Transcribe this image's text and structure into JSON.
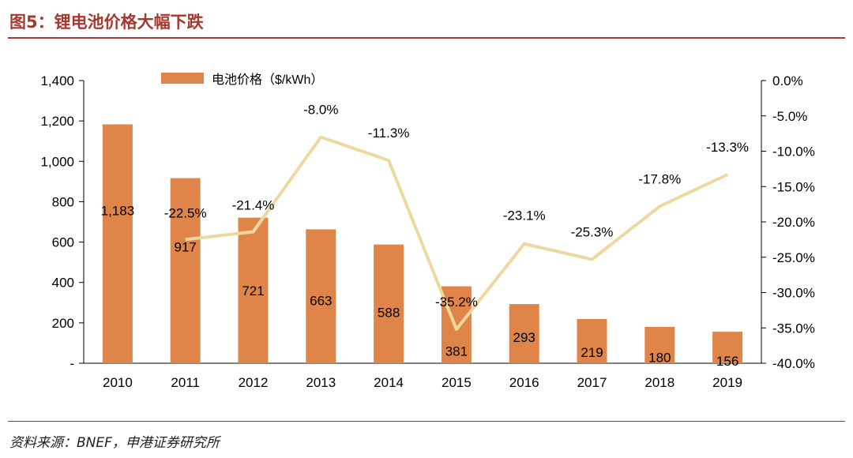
{
  "figure": {
    "title": "图5：锂电池价格大幅下跌",
    "source": "资料来源：BNEF，申港证券研究所"
  },
  "colors": {
    "bar": "#e0854a",
    "line": "#edd9a0",
    "accent": "#a33a2f"
  },
  "chart_data": {
    "type": "bar",
    "categories": [
      "2010",
      "2011",
      "2012",
      "2013",
      "2014",
      "2015",
      "2016",
      "2017",
      "2018",
      "2019"
    ],
    "series": [
      {
        "name": "电池价格（$/kWh）",
        "type": "bar",
        "axis": "left",
        "values": [
          1183,
          917,
          721,
          663,
          588,
          381,
          293,
          219,
          180,
          156
        ],
        "labels": [
          "1,183",
          "917",
          "721",
          "663",
          "588",
          "381",
          "293",
          "219",
          "180",
          "156"
        ]
      },
      {
        "type": "line",
        "axis": "right",
        "values": [
          null,
          -22.5,
          -21.4,
          -8.0,
          -11.3,
          -35.2,
          -23.1,
          -25.3,
          -17.8,
          -13.3
        ],
        "labels": [
          "",
          "-22.5%",
          "-21.4%",
          "-8.0%",
          "-11.3%",
          "-35.2%",
          "-23.1%",
          "-25.3%",
          "-17.8%",
          "-13.3%"
        ]
      }
    ],
    "y_left": {
      "ylim": [
        0,
        1400
      ],
      "ticks": [
        0,
        200,
        400,
        600,
        800,
        1000,
        1200,
        1400
      ],
      "tick_labels": [
        "-",
        "200",
        "400",
        "600",
        "800",
        "1,000",
        "1,200",
        "1,400"
      ]
    },
    "y_right": {
      "ylim": [
        -40,
        0
      ],
      "ticks": [
        0,
        -5,
        -10,
        -15,
        -20,
        -25,
        -30,
        -35,
        -40
      ],
      "tick_labels": [
        "0.0%",
        "-5.0%",
        "-10.0%",
        "-15.0%",
        "-20.0%",
        "-25.0%",
        "-30.0%",
        "-35.0%",
        "-40.0%"
      ]
    },
    "legend": {
      "position": "top-left",
      "entries": [
        "电池价格（$/kWh）"
      ]
    },
    "grid": false
  }
}
